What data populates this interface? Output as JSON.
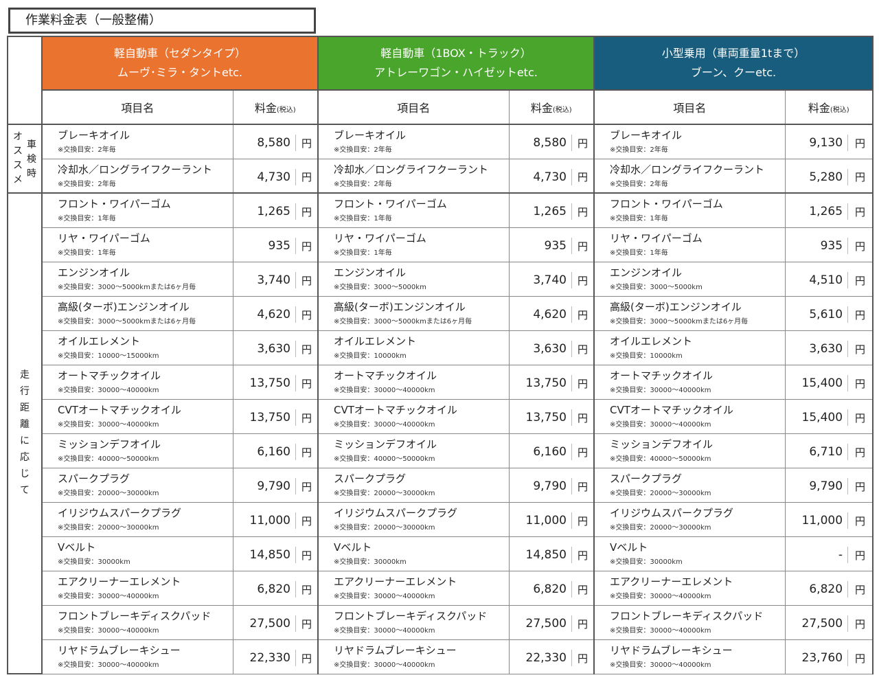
{
  "title": "作業料金表（一般整備）",
  "categories": [
    {
      "line1": "軽自動車（セダンタイプ）",
      "line2": "ムーヴ･ミラ・タントetc.",
      "color": "#ea7330"
    },
    {
      "line1": "軽自動車（1BOX・トラック）",
      "line2": "アトレーワゴン・ハイゼットetc.",
      "color": "#4aa52c"
    },
    {
      "line1": "小型乗用（車両重量1tまで）",
      "line2": "ブーン、クーetc.",
      "color": "#185d7d"
    }
  ],
  "columns": {
    "item": "項目名",
    "price": "料金",
    "tax": "(税込)"
  },
  "currency": "円",
  "groups": {
    "osusume": [
      "オ",
      "ス",
      "ス",
      "メ"
    ],
    "shaken": [
      "車",
      "検",
      "時"
    ],
    "distance": [
      "走",
      "行",
      "距",
      "離",
      "に",
      "応",
      "じ",
      "て"
    ]
  },
  "rows": [
    {
      "c": [
        {
          "n": "ブレーキオイル",
          "t": "※交換目安：2年毎",
          "p": "8,580"
        },
        {
          "n": "ブレーキオイル",
          "t": "※交換目安：2年毎",
          "p": "8,580"
        },
        {
          "n": "ブレーキオイル",
          "t": "※交換目安：2年毎",
          "p": "9,130"
        }
      ]
    },
    {
      "c": [
        {
          "n": "冷却水／ロングライフクーラント",
          "t": "※交換目安：2年毎",
          "p": "4,730"
        },
        {
          "n": "冷却水／ロングライフクーラント",
          "t": "※交換目安：2年毎",
          "p": "4,730"
        },
        {
          "n": "冷却水／ロングライフクーラント",
          "t": "※交換目安：2年毎",
          "p": "5,280"
        }
      ]
    },
    {
      "c": [
        {
          "n": "フロント・ワイパーゴム",
          "t": "※交換目安：1年毎",
          "p": "1,265"
        },
        {
          "n": "フロント・ワイパーゴム",
          "t": "※交換目安：1年毎",
          "p": "1,265"
        },
        {
          "n": "フロント・ワイパーゴム",
          "t": "※交換目安：1年毎",
          "p": "1,265"
        }
      ]
    },
    {
      "c": [
        {
          "n": "リヤ・ワイパーゴム",
          "t": "※交換目安：1年毎",
          "p": "935"
        },
        {
          "n": "リヤ・ワイパーゴム",
          "t": "※交換目安：1年毎",
          "p": "935"
        },
        {
          "n": "リヤ・ワイパーゴム",
          "t": "※交換目安：1年毎",
          "p": "935"
        }
      ]
    },
    {
      "c": [
        {
          "n": "エンジンオイル",
          "t": "※交換目安：3000～5000kmまたは6ヶ月毎",
          "p": "3,740"
        },
        {
          "n": "エンジンオイル",
          "t": "※交換目安：3000～5000km",
          "p": "3,740"
        },
        {
          "n": "エンジンオイル",
          "t": "※交換目安：3000～5000km",
          "p": "4,510"
        }
      ]
    },
    {
      "c": [
        {
          "n": "高級(ターボ)エンジンオイル",
          "t": "※交換目安：3000～5000kmまたは6ヶ月毎",
          "p": "4,620"
        },
        {
          "n": "高級(ターボ)エンジンオイル",
          "t": "※交換目安：3000～5000kmまたは6ヶ月毎",
          "p": "4,620"
        },
        {
          "n": "高級(ターボ)エンジンオイル",
          "t": "※交換目安：3000～5000kmまたは6ヶ月毎",
          "p": "5,610"
        }
      ]
    },
    {
      "c": [
        {
          "n": "オイルエレメント",
          "t": "※交換目安：10000～15000km",
          "p": "3,630"
        },
        {
          "n": "オイルエレメント",
          "t": "※交換目安：10000km",
          "p": "3,630"
        },
        {
          "n": "オイルエレメント",
          "t": "※交換目安：10000km",
          "p": "3,630"
        }
      ]
    },
    {
      "c": [
        {
          "n": "オートマチックオイル",
          "t": "※交換目安：30000～40000km",
          "p": "13,750"
        },
        {
          "n": "オートマチックオイル",
          "t": "※交換目安：30000～40000km",
          "p": "13,750"
        },
        {
          "n": "オートマチックオイル",
          "t": "※交換目安：30000～40000km",
          "p": "15,400"
        }
      ]
    },
    {
      "c": [
        {
          "n": "CVTオートマチックオイル",
          "t": "※交換目安：30000～40000km",
          "p": "13,750"
        },
        {
          "n": "CVTオートマチックオイル",
          "t": "※交換目安：30000～40000km",
          "p": "13,750"
        },
        {
          "n": "CVTオートマチックオイル",
          "t": "※交換目安：30000～40000km",
          "p": "15,400"
        }
      ]
    },
    {
      "c": [
        {
          "n": "ミッションデフオイル",
          "t": "※交換目安：40000～50000km",
          "p": "6,160"
        },
        {
          "n": "ミッションデフオイル",
          "t": "※交換目安：40000～50000km",
          "p": "6,160"
        },
        {
          "n": "ミッションデフオイル",
          "t": "※交換目安：40000～50000km",
          "p": "6,710"
        }
      ]
    },
    {
      "c": [
        {
          "n": "スパークプラグ",
          "t": "※交換目安：20000～30000km",
          "p": "9,790"
        },
        {
          "n": "スパークプラグ",
          "t": "※交換目安：20000～30000km",
          "p": "9,790"
        },
        {
          "n": "スパークプラグ",
          "t": "※交換目安：20000～30000km",
          "p": "9,790"
        }
      ]
    },
    {
      "c": [
        {
          "n": "イリジウムスパークプラグ",
          "t": "※交換目安：20000～30000km",
          "p": "11,000"
        },
        {
          "n": "イリジウムスパークプラグ",
          "t": "※交換目安：20000～30000km",
          "p": "11,000"
        },
        {
          "n": "イリジウムスパークプラグ",
          "t": "※交換目安：20000～30000km",
          "p": "11,000"
        }
      ]
    },
    {
      "c": [
        {
          "n": "Vベルト",
          "t": "※交換目安：30000km",
          "p": "14,850"
        },
        {
          "n": "Vベルト",
          "t": "※交換目安：30000km",
          "p": "14,850"
        },
        {
          "n": "Vベルト",
          "t": "※交換目安：30000km",
          "p": "-"
        }
      ]
    },
    {
      "c": [
        {
          "n": "エアクリーナーエレメント",
          "t": "※交換目安：30000～40000km",
          "p": "6,820"
        },
        {
          "n": "エアクリーナーエレメント",
          "t": "※交換目安：30000～40000km",
          "p": "6,820"
        },
        {
          "n": "エアクリーナーエレメント",
          "t": "※交換目安：30000～40000km",
          "p": "6,820"
        }
      ]
    },
    {
      "c": [
        {
          "n": "フロントブレーキディスクパッド",
          "t": "※交換目安：30000～40000km",
          "p": "27,500"
        },
        {
          "n": "フロントブレーキディスクパッド",
          "t": "※交換目安：30000～40000km",
          "p": "27,500"
        },
        {
          "n": "フロントブレーキディスクパッド",
          "t": "※交換目安：30000～40000km",
          "p": "27,500"
        }
      ]
    },
    {
      "c": [
        {
          "n": "リヤドラムブレーキシュー",
          "t": "※交換目安：30000～40000km",
          "p": "22,330"
        },
        {
          "n": "リヤドラムブレーキシュー",
          "t": "※交換目安：30000～40000km",
          "p": "22,330"
        },
        {
          "n": "リヤドラムブレーキシュー",
          "t": "※交換目安：30000～40000km",
          "p": "23,760"
        }
      ]
    }
  ]
}
